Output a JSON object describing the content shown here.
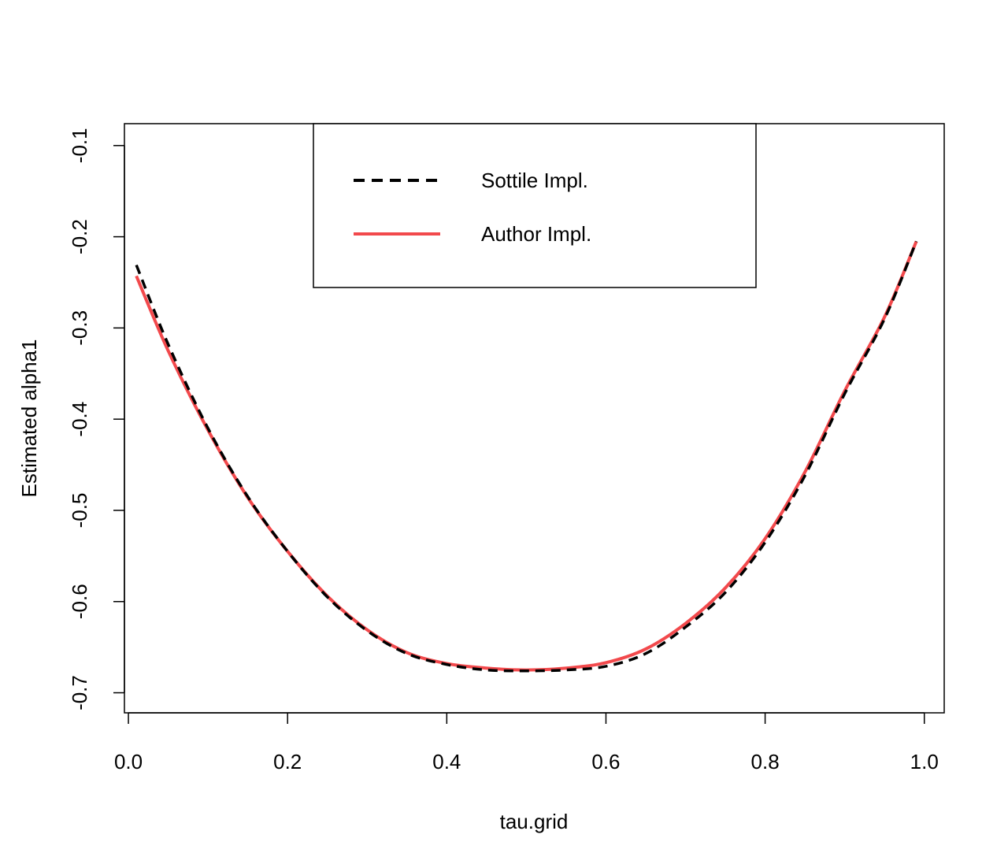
{
  "chart_data": {
    "type": "line",
    "title": "",
    "xlabel": "tau.grid",
    "ylabel": "Estimated alpha1",
    "xlim": [
      -0.005,
      1.025
    ],
    "ylim": [
      -0.722,
      -0.076
    ],
    "xticks": [
      0.0,
      0.2,
      0.4,
      0.6,
      0.8,
      1.0
    ],
    "xtick_labels": [
      "0.0",
      "0.2",
      "0.4",
      "0.6",
      "0.8",
      "1.0"
    ],
    "yticks": [
      -0.7,
      -0.6,
      -0.5,
      -0.4,
      -0.3,
      -0.2,
      -0.1
    ],
    "ytick_labels": [
      "-0.7",
      "-0.6",
      "-0.5",
      "-0.4",
      "-0.3",
      "-0.2",
      "-0.1"
    ],
    "grid": false,
    "legend_position": "top-center",
    "series": [
      {
        "name": "Sottile Impl.",
        "color": "#000000",
        "style": "dashed",
        "x": [
          0.01,
          0.05,
          0.1,
          0.15,
          0.2,
          0.25,
          0.3,
          0.35,
          0.4,
          0.45,
          0.5,
          0.55,
          0.6,
          0.65,
          0.7,
          0.75,
          0.8,
          0.85,
          0.9,
          0.95,
          0.99
        ],
        "y": [
          -0.231,
          -0.318,
          -0.41,
          -0.485,
          -0.545,
          -0.595,
          -0.632,
          -0.657,
          -0.669,
          -0.675,
          -0.676,
          -0.675,
          -0.671,
          -0.657,
          -0.628,
          -0.59,
          -0.535,
          -0.462,
          -0.372,
          -0.29,
          -0.205
        ]
      },
      {
        "name": "Author Impl.",
        "color": "#F2494C",
        "style": "solid",
        "x": [
          0.01,
          0.05,
          0.1,
          0.15,
          0.2,
          0.25,
          0.3,
          0.35,
          0.4,
          0.45,
          0.5,
          0.55,
          0.6,
          0.65,
          0.7,
          0.75,
          0.8,
          0.85,
          0.9,
          0.95,
          0.99
        ],
        "y": [
          -0.243,
          -0.325,
          -0.412,
          -0.486,
          -0.545,
          -0.594,
          -0.631,
          -0.656,
          -0.668,
          -0.673,
          -0.675,
          -0.673,
          -0.667,
          -0.652,
          -0.624,
          -0.585,
          -0.531,
          -0.458,
          -0.369,
          -0.288,
          -0.205
        ]
      }
    ]
  }
}
